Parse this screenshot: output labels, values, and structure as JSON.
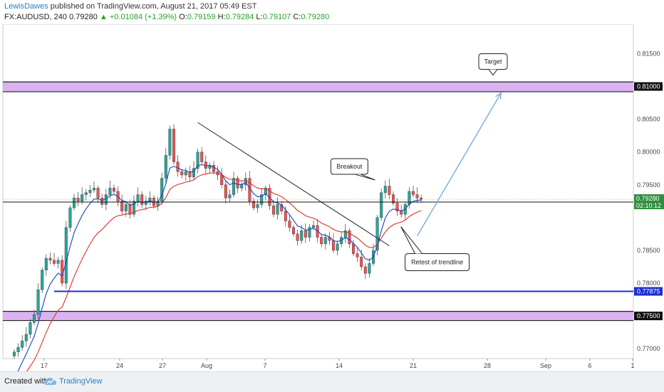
{
  "header": {
    "author": "LewisDawes",
    "published": " published on TradingView.com, August 21, 2017 05:49 EST",
    "symbol": "FX:AUDUSD, 240",
    "last": "0.79280",
    "change": "+0.01084 (+1.39%)",
    "o_label": "O:",
    "o": "0.79159",
    "h_label": "H:",
    "h": "0.79284",
    "l_label": "L:",
    "l": "0.79107",
    "c_label": "C:",
    "c": "0.79280"
  },
  "footer": {
    "created": "Created with",
    "brand": "TradingView"
  },
  "colors": {
    "bull": "#26a69a",
    "bear": "#ef5350",
    "ma_fast": "#1f3fbf",
    "ma_slow": "#e0302c",
    "zone": "#d9b2ef",
    "support": "#1a2fd0",
    "arrow": "#7fb2e0"
  },
  "chart_data": {
    "type": "candlestick",
    "x_axis": {
      "tick_labels": [
        "17",
        "24",
        "27",
        "Aug",
        "7",
        "14",
        "21",
        "28",
        "Sep",
        "6",
        "1"
      ]
    },
    "y_axis": {
      "range": [
        0.7685,
        0.8195
      ],
      "tick_labels": [
        "0.81500",
        "0.81000",
        "0.80500",
        "0.80000",
        "0.79500",
        "0.79250",
        "0.78500",
        "0.78000",
        "0.77875",
        "0.77500",
        "0.77000"
      ]
    },
    "price_labels": {
      "current": "0.79280",
      "countdown": "02:10:12",
      "level": "0.79250",
      "support": "0.77875",
      "zone_low": "0.77500",
      "zone_high": "0.81000"
    },
    "zones": [
      {
        "low": 0.8092,
        "high": 0.8107
      },
      {
        "low": 0.7743,
        "high": 0.7757
      }
    ],
    "support_line": 0.77875,
    "trendline": {
      "from": {
        "bar": 46,
        "price": 0.8045
      },
      "to": {
        "bar": 94,
        "price": 0.7857
      }
    },
    "target_arrow": {
      "from": {
        "bar": 101,
        "price": 0.7872
      },
      "to": {
        "bar": 122,
        "price": 0.809
      }
    },
    "annotations": [
      {
        "text": "Target",
        "bar": 120,
        "price": 0.8138
      },
      {
        "text": "Breakout",
        "bar": 84,
        "price": 0.7978
      },
      {
        "text": "Retest of trendline",
        "bar": 106,
        "price": 0.7832
      }
    ],
    "close_series": [
      0.7695,
      0.7702,
      0.7712,
      0.7722,
      0.774,
      0.7752,
      0.779,
      0.782,
      0.7838,
      0.7835,
      0.783,
      0.7835,
      0.78,
      0.7885,
      0.7915,
      0.793,
      0.7925,
      0.7935,
      0.7938,
      0.7942,
      0.7945,
      0.793,
      0.792,
      0.7935,
      0.7945,
      0.794,
      0.7925,
      0.791,
      0.792,
      0.7905,
      0.7925,
      0.7935,
      0.792,
      0.7925,
      0.793,
      0.7918,
      0.7925,
      0.796,
      0.7995,
      0.8035,
      0.7985,
      0.797,
      0.7965,
      0.797,
      0.7962,
      0.7975,
      0.8,
      0.7985,
      0.7975,
      0.798,
      0.797,
      0.7965,
      0.795,
      0.793,
      0.7935,
      0.796,
      0.7945,
      0.795,
      0.796,
      0.7925,
      0.7915,
      0.792,
      0.7935,
      0.7945,
      0.7918,
      0.7905,
      0.792,
      0.791,
      0.7895,
      0.7885,
      0.7875,
      0.7865,
      0.788,
      0.787,
      0.7885,
      0.7888,
      0.787,
      0.786,
      0.787,
      0.7865,
      0.785,
      0.786,
      0.787,
      0.788,
      0.786,
      0.7845,
      0.784,
      0.7825,
      0.7815,
      0.783,
      0.785,
      0.79,
      0.7938,
      0.7948,
      0.7935,
      0.7922,
      0.791,
      0.7905,
      0.792,
      0.794,
      0.7935,
      0.793,
      0.7928
    ]
  }
}
